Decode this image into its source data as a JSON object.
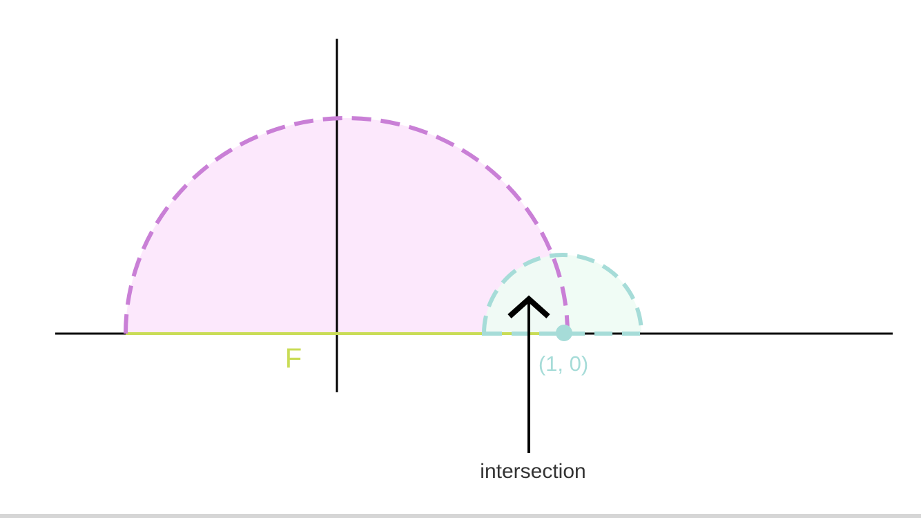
{
  "labels": {
    "region": "F",
    "point": "(1, 0)",
    "annotation": "intersection"
  },
  "colors": {
    "axis": "#000000",
    "large_half_disk_stroke": "#c97fd6",
    "large_half_disk_fill": "#fce8fc",
    "small_half_disk_stroke": "#a6dcd8",
    "small_half_disk_fill": "#eefcf4",
    "segment_F": "#c9dc56",
    "point": "#a6dcd8",
    "arrow": "#000000",
    "annotation_text": "#333333"
  }
}
